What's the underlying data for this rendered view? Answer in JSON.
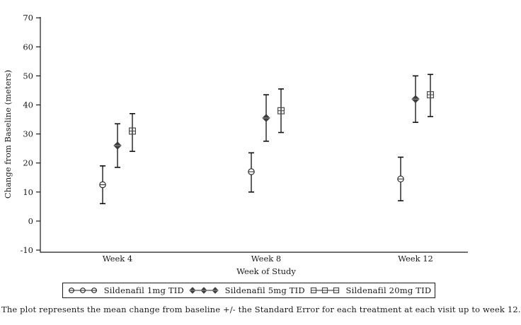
{
  "caption": "The plot represents the mean change from baseline +/- the Standard Error for each treatment at each visit up to week 12.",
  "chart_data": {
    "type": "scatter",
    "variant": "mean-plus-minus-standard-error",
    "title": "",
    "xlabel": "Week of Study",
    "ylabel": "Change from Baseline (meters)",
    "categories": [
      "Week 4",
      "Week 8",
      "Week 12"
    ],
    "ylim": [
      -10,
      70
    ],
    "yticks": [
      70,
      60,
      50,
      40,
      30,
      20,
      10,
      0,
      -10
    ],
    "grid": false,
    "legend_position": "bottom-boxed",
    "axis_color": "#1a1a1a",
    "series": [
      {
        "name": "Sildenafil 1mg TID",
        "marker": "circle-minus",
        "color": "#2a2a2a",
        "means": [
          12.5,
          17,
          14.5
        ],
        "lower": [
          6,
          10,
          7
        ],
        "upper": [
          19,
          23.5,
          22
        ]
      },
      {
        "name": "Sildenafil 5mg TID",
        "marker": "diamond-filled",
        "color": "#2a2a2a",
        "means": [
          26,
          35.5,
          42
        ],
        "lower": [
          18.5,
          27.5,
          34
        ],
        "upper": [
          33.5,
          43.5,
          50
        ]
      },
      {
        "name": "Sildenafil 20mg TID",
        "marker": "square-minus",
        "color": "#2a2a2a",
        "means": [
          31,
          38,
          43.5
        ],
        "lower": [
          24,
          30.5,
          36
        ],
        "upper": [
          37,
          45.5,
          50.5
        ]
      }
    ]
  }
}
